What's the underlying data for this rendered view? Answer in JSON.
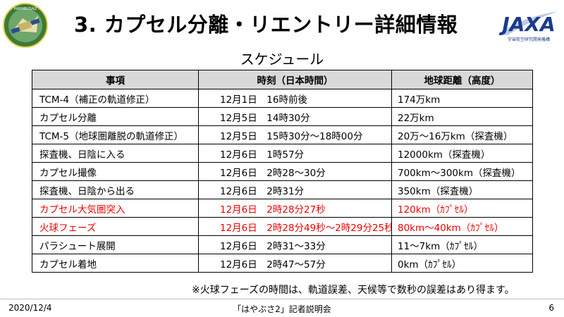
{
  "title": "3. カプセル分離・リエントリー詳細情報",
  "subtitle": "スケジュール",
  "logo_left_text": "HAYABUSA2",
  "logo_right_text": "JAXA",
  "logo_right_caption": "宇宙航空研究開発機構",
  "table": {
    "headers": [
      "事項",
      "時刻（日本時間）",
      "地球距離（高度）"
    ],
    "rows": [
      {
        "event": "TCM-4（補正の軌道修正）",
        "time": "12月1日　16時前後",
        "distance": "174万km",
        "highlight": false
      },
      {
        "event": "カプセル分離",
        "time": "12月5日　14時30分",
        "distance": "22万km",
        "highlight": false
      },
      {
        "event": "TCM-5（地球圏離脱の軌道修正）",
        "time": "12月5日　15時30分～18時00分",
        "distance": "20万～16万km（探査機）",
        "highlight": false
      },
      {
        "event": "探査機、日陰に入る",
        "time": "12月6日　1時57分",
        "distance": "12000km（探査機）",
        "highlight": false
      },
      {
        "event": "カプセル撮像",
        "time": "12月6日　2時28～30分",
        "distance": "700km～300km（探査機）",
        "highlight": false
      },
      {
        "event": "探査機、日陰から出る",
        "time": "12月6日　2時31分",
        "distance": "350km（探査機）",
        "highlight": false
      },
      {
        "event": "カプセル大気圏突入",
        "time": "12月6日　2時28分27秒",
        "distance": "120km（ｶﾌﾟｾﾙ）",
        "highlight": true
      },
      {
        "event": "火球フェーズ",
        "time": "12月6日　2時28分49秒～2時29分25秒",
        "distance": "80km～40km（ｶﾌﾟｾﾙ）",
        "highlight": true
      },
      {
        "event": "パラシュート展開",
        "time": "12月6日　2時31～33分",
        "distance": "11～7km（ｶﾌﾟｾﾙ）",
        "highlight": false
      },
      {
        "event": "カプセル着地",
        "time": "12月6日　2時47～57分",
        "distance": "0km（ｶﾌﾟｾﾙ）",
        "highlight": false
      }
    ]
  },
  "note": "※火球フェーズの時間は、軌道誤差、天候等で数秒の誤差はあり得ます。",
  "footer": {
    "date": "2020/12/4",
    "center": "「はやぶさ2」記者説明会",
    "page": "6"
  },
  "colors": {
    "highlight": "#ee0000",
    "header_bg": "#d9d9d9",
    "jaxa_blue": "#1a3a8c",
    "logo_green": "#3d7a3a"
  }
}
